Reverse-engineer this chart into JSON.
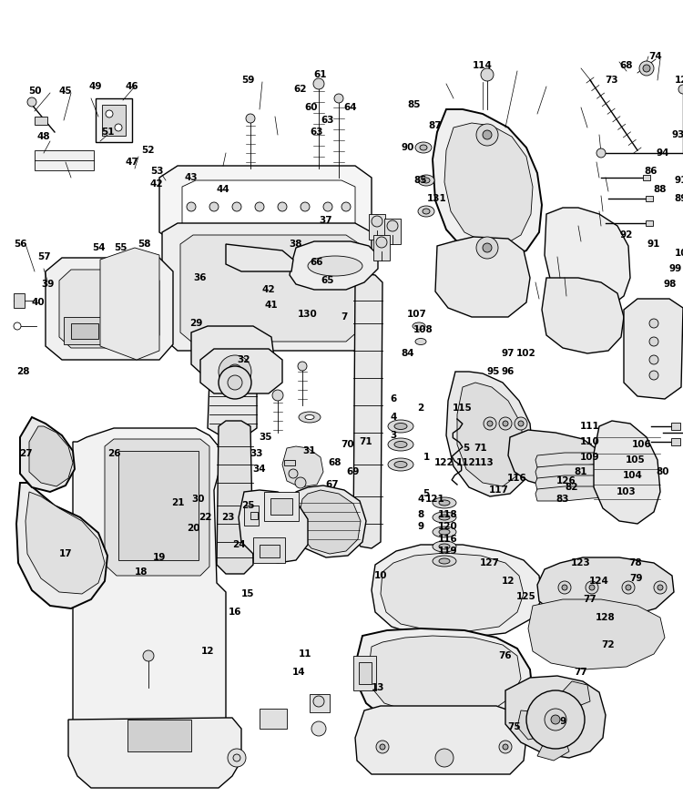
{
  "background_color": "#ffffff",
  "fig_width": 7.5,
  "fig_height": 8.75,
  "dpi": 100,
  "line_color": "#000000",
  "text_color": "#000000",
  "font_size": 7.5,
  "font_size_small": 6.5,
  "lw_thin": 0.6,
  "lw_med": 1.0,
  "lw_thick": 1.4,
  "gray_light": "#f0f0f0",
  "gray_mid": "#d8d8d8",
  "gray_dark": "#b8b8b8",
  "white": "#ffffff"
}
